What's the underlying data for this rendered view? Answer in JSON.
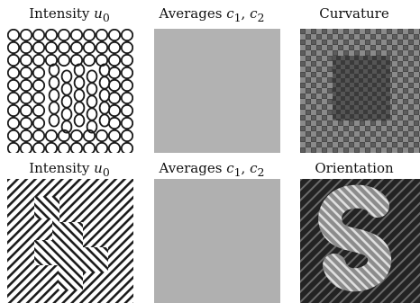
{
  "figure": {
    "row1": {
      "intensity": {
        "label": "Intensity",
        "sym": "u",
        "sub": "0"
      },
      "averages": {
        "label": "Averages",
        "sym1": "c",
        "sub1": "1",
        "sep": ", ",
        "sym2": "c",
        "sub2": "2"
      },
      "third": {
        "label": "Curvature"
      }
    },
    "row2": {
      "intensity": {
        "label": "Intensity",
        "sym": "u",
        "sub": "0"
      },
      "averages": {
        "label": "Averages",
        "sym1": "c",
        "sub1": "1",
        "sep": ", ",
        "sym2": "c",
        "sub2": "2"
      },
      "third": {
        "label": "Orientation"
      }
    }
  }
}
